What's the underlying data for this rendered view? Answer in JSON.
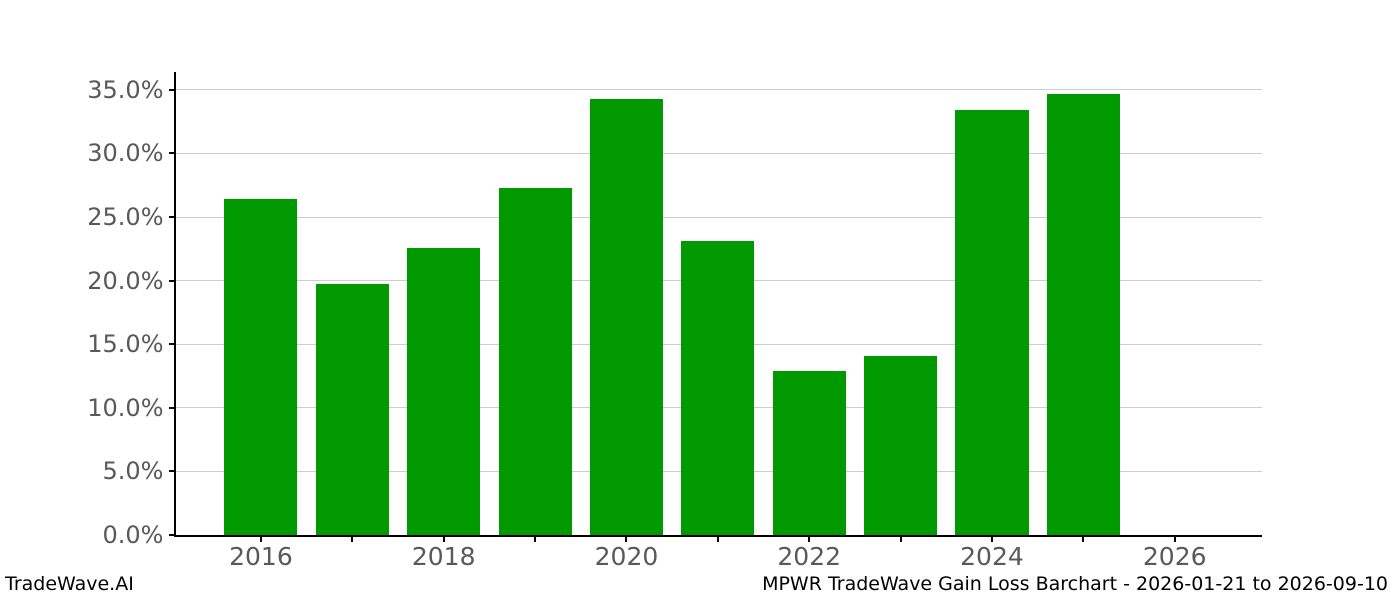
{
  "chart_data": {
    "type": "bar",
    "title": "MPWR TradeWave Gain Loss Barchart - 2026-01-21 to 2026-09-10",
    "categories": [
      "2016",
      "2017",
      "2018",
      "2019",
      "2020",
      "2021",
      "2022",
      "2023",
      "2024",
      "2025"
    ],
    "values": [
      26.4,
      19.7,
      22.6,
      27.3,
      34.3,
      23.1,
      12.9,
      14.1,
      33.4,
      34.7
    ],
    "xlabel": "",
    "ylabel": "",
    "xticks": [
      "2016",
      "2017",
      "2018",
      "2019",
      "2020",
      "2021",
      "2022",
      "2023",
      "2024",
      "2025",
      "2026"
    ],
    "xtick_labels_shown": [
      "2016",
      "2018",
      "2020",
      "2022",
      "2024",
      "2026"
    ],
    "yticks": [
      "0.0%",
      "5.0%",
      "10.0%",
      "15.0%",
      "20.0%",
      "25.0%",
      "30.0%",
      "35.0%"
    ],
    "ylim": [
      0,
      36.4
    ],
    "grid": "horizontal",
    "legend": "none",
    "bar_color": "#009a00",
    "gridline_color": "#cccccc",
    "axis_color": "#000000",
    "tick_label_color": "#595959"
  },
  "footer": {
    "left": "TradeWave.AI",
    "right": "MPWR TradeWave Gain Loss Barchart - 2026-01-21 to 2026-09-10"
  }
}
